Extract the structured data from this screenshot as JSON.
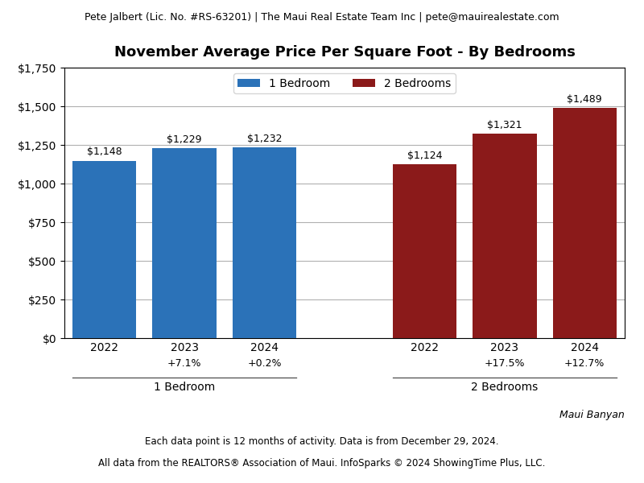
{
  "chart_data": {
    "type": "bar",
    "title": "November Average Price Per Square Foot - By Bedrooms",
    "annotations": [
      "Pete Jalbert (Lic. No. #RS-63201) | The Maui Real Estate Team Inc | pete@mauirealestate.com",
      "Maui Banyan",
      "Each data point is 12 months of activity. Data is from December 29, 2024.",
      "All data from the REALTORS® Association of Maui. InfoSparks © 2024 ShowingTime Plus, LLC."
    ],
    "categories": [
      "2022",
      "2023",
      "2024",
      null,
      "2022",
      "2023",
      "2024"
    ],
    "series": [
      {
        "name": "1 Bedroom",
        "color": "#2b72b8",
        "values": [
          1148,
          1229,
          1232,
          null,
          null,
          null,
          null
        ],
        "value_labels": [
          "$1,148",
          "$1,229",
          "$1,232",
          null,
          null,
          null,
          null
        ],
        "change_labels": [
          null,
          "+7.1%",
          "+0.2%",
          null,
          null,
          null,
          null
        ]
      },
      {
        "name": "2 Bedrooms",
        "color": "#8b1a1a",
        "values": [
          null,
          null,
          null,
          null,
          1124,
          1321,
          1489
        ],
        "value_labels": [
          null,
          null,
          null,
          null,
          "$1,124",
          "$1,321",
          "$1,489"
        ],
        "change_labels": [
          null,
          null,
          null,
          null,
          null,
          "+17.5%",
          "+12.7%"
        ]
      }
    ],
    "ylim": [
      0,
      1750
    ],
    "yticks": [
      {
        "value": 0,
        "label": "$0"
      },
      {
        "value": 250,
        "label": "$250"
      },
      {
        "value": 500,
        "label": "$500"
      },
      {
        "value": 750,
        "label": "$750"
      },
      {
        "value": 1000,
        "label": "$1,000"
      },
      {
        "value": 1250,
        "label": "$1,250"
      },
      {
        "value": 1500,
        "label": "$1,500"
      },
      {
        "value": 1750,
        "label": "$1,750"
      }
    ],
    "grid": true,
    "legend": "upper center",
    "data_labels": true
  }
}
